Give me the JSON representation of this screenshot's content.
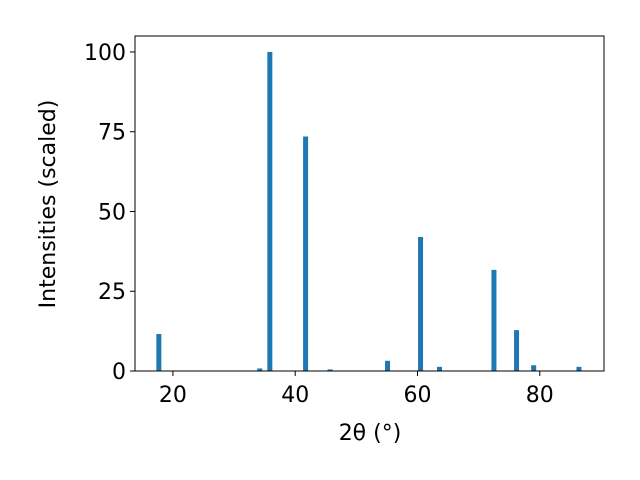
{
  "chart_data": {
    "type": "bar",
    "x": [
      17.7,
      34.2,
      35.85,
      41.7,
      45.7,
      55.1,
      60.5,
      63.6,
      72.5,
      76.2,
      79.0,
      86.4
    ],
    "values": [
      11.6,
      0.8,
      100,
      73.5,
      0.5,
      3.2,
      42,
      1.3,
      31.7,
      12.8,
      1.8,
      1.3
    ],
    "color": "#1f77b4",
    "xlabel": "2θ (°)",
    "ylabel": "Intensities (scaled)",
    "xlim": [
      13.8,
      90.5
    ],
    "ylim": [
      0,
      105
    ],
    "xticks": [
      20,
      40,
      60,
      80
    ],
    "yticks": [
      0,
      25,
      50,
      75,
      100
    ]
  }
}
